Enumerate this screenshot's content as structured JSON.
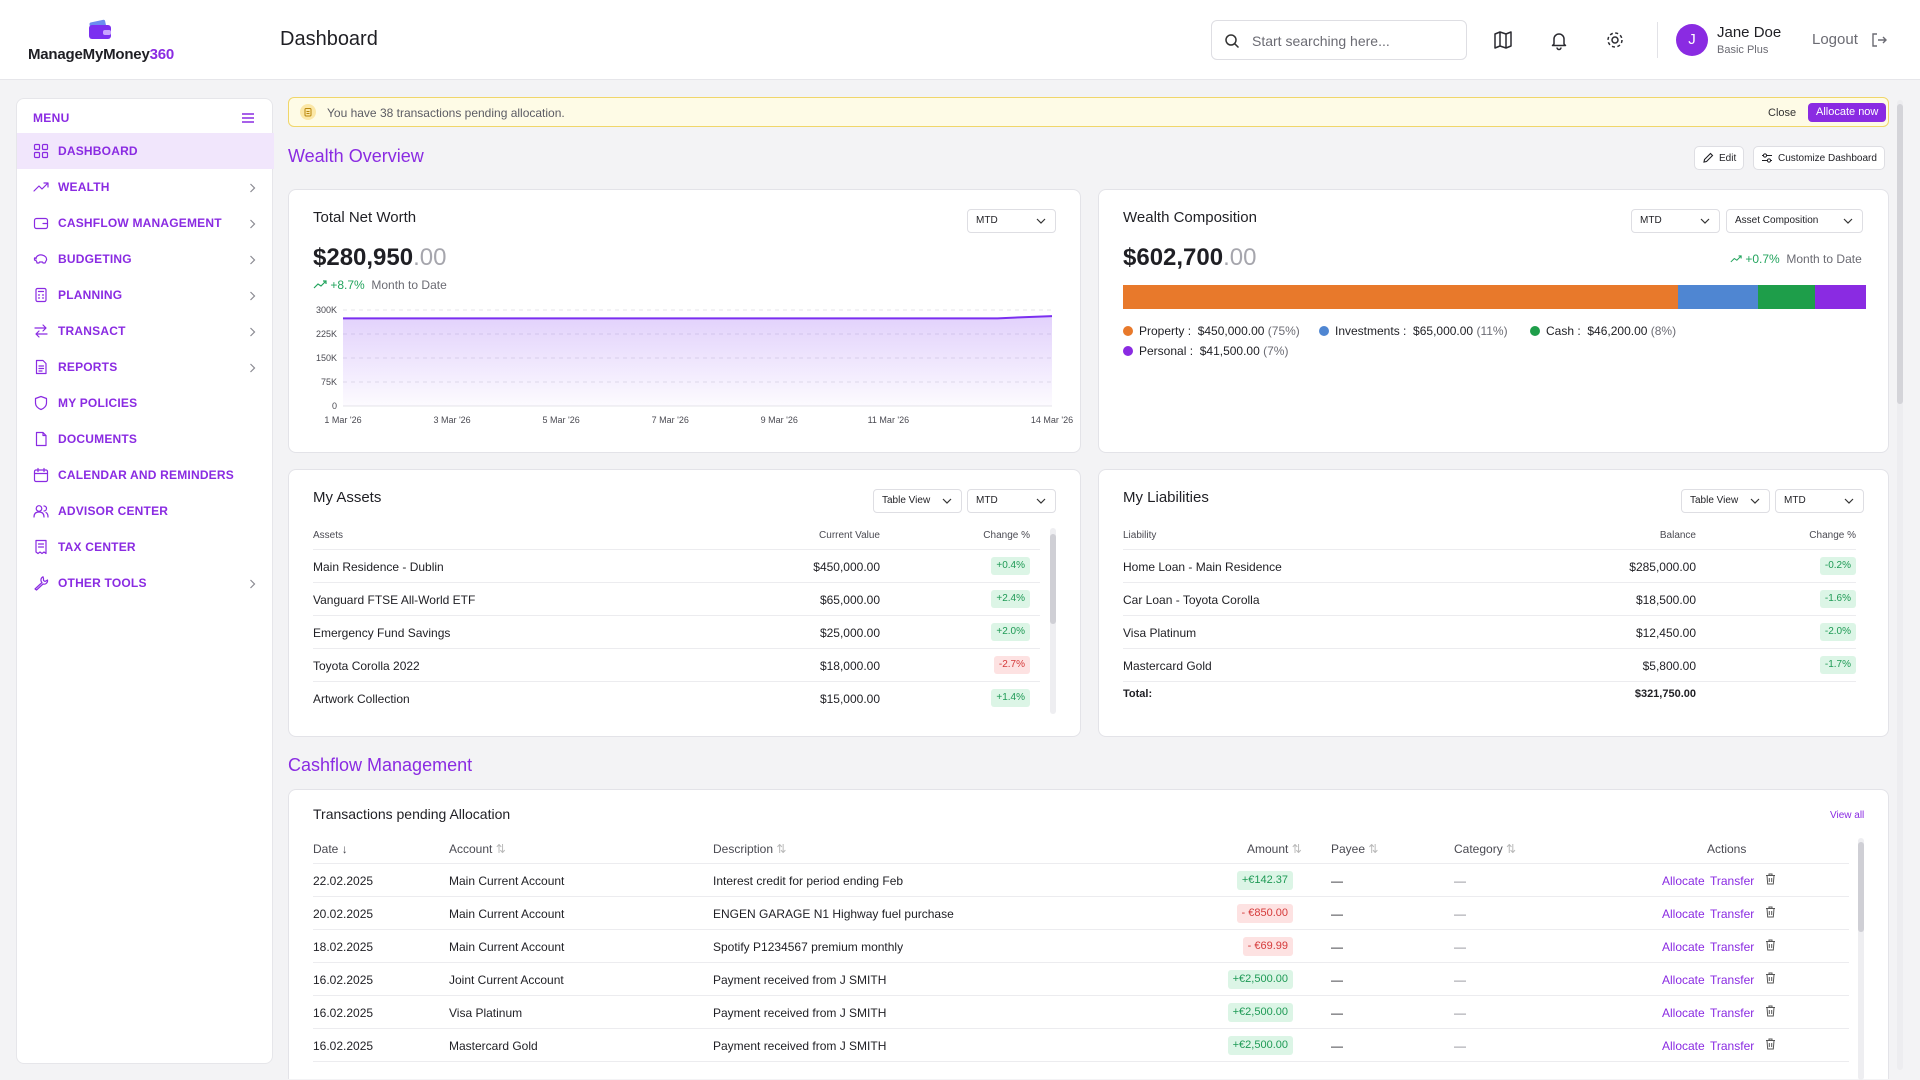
{
  "header": {
    "logo_text_main": "ManageMyMoney",
    "logo_text_accent": "360",
    "page_title": "Dashboard",
    "search_placeholder": "Start searching here...",
    "icons": [
      "map-icon",
      "bell-icon",
      "gear-icon"
    ],
    "user": {
      "initial": "J",
      "name": "Jane Doe",
      "plan": "Basic Plus"
    },
    "logout_label": "Logout"
  },
  "sidebar": {
    "menu_label": "MENU",
    "items": [
      {
        "label": "DASHBOARD",
        "icon": "dashboard-icon",
        "active": true,
        "chevron": false
      },
      {
        "label": "WEALTH",
        "icon": "trending-up-icon",
        "active": false,
        "chevron": true
      },
      {
        "label": "CASHFLOW MANAGEMENT",
        "icon": "wallet-icon",
        "active": false,
        "chevron": true
      },
      {
        "label": "BUDGETING",
        "icon": "piggy-bank-icon",
        "active": false,
        "chevron": true
      },
      {
        "label": "PLANNING",
        "icon": "calculator-icon",
        "active": false,
        "chevron": true
      },
      {
        "label": "TRANSACT",
        "icon": "arrows-swap-icon",
        "active": false,
        "chevron": true
      },
      {
        "label": "REPORTS",
        "icon": "report-icon",
        "active": false,
        "chevron": true
      },
      {
        "label": "MY POLICIES",
        "icon": "shield-icon",
        "active": false,
        "chevron": false
      },
      {
        "label": "DOCUMENTS",
        "icon": "document-icon",
        "active": false,
        "chevron": false
      },
      {
        "label": "CALENDAR AND REMINDERS",
        "icon": "calendar-icon",
        "active": false,
        "chevron": false
      },
      {
        "label": "ADVISOR CENTER",
        "icon": "users-icon",
        "active": false,
        "chevron": false
      },
      {
        "label": "TAX CENTER",
        "icon": "receipt-icon",
        "active": false,
        "chevron": false
      },
      {
        "label": "OTHER TOOLS",
        "icon": "wrench-icon",
        "active": false,
        "chevron": true
      }
    ]
  },
  "banner": {
    "text": "You have 38 transactions pending allocation.",
    "close_label": "Close",
    "action_label": "Allocate now"
  },
  "wealth_overview": {
    "title": "Wealth Overview",
    "edit_label": "Edit",
    "customize_label": "Customize Dashboard"
  },
  "net_worth": {
    "title": "Total Net Worth",
    "period": "MTD",
    "amount_main": "$280,950",
    "amount_cents": ".00",
    "change": "+8.7%",
    "change_label": "Month to Date"
  },
  "chart_data": {
    "type": "area",
    "x": [
      "1 Mar '26",
      "2 Mar '26",
      "3 Mar '26",
      "4 Mar '26",
      "5 Mar '26",
      "6 Mar '26",
      "7 Mar '26",
      "8 Mar '26",
      "9 Mar '26",
      "10 Mar '26",
      "11 Mar '26",
      "12 Mar '26",
      "13 Mar '26",
      "14 Mar '26"
    ],
    "x_tick_labels": [
      "1 Mar '26",
      "3 Mar '26",
      "5 Mar '26",
      "7 Mar '26",
      "9 Mar '26",
      "11 Mar '26",
      "14 Mar '26"
    ],
    "series": [
      {
        "values": [
          274000,
          274000,
          274000,
          274000,
          274000,
          274000,
          274000,
          274000,
          274000,
          274000,
          274000,
          274000,
          274000,
          281000
        ]
      }
    ],
    "y_ticks": [
      "0",
      "75K",
      "150K",
      "225K",
      "300K"
    ],
    "ylim": [
      0,
      300000
    ],
    "grid": true,
    "color": "#7b2ff0"
  },
  "composition": {
    "title": "Wealth Composition",
    "period": "MTD",
    "view": "Asset Composition",
    "amount_main": "$602,700",
    "amount_cents": ".00",
    "change": "+0.7%",
    "change_label": "Month to Date",
    "segments": [
      {
        "name": "Property",
        "value": "$450,000.00",
        "pct": "(75%)",
        "fraction": 0.747,
        "color": "#e8792b"
      },
      {
        "name": "Investments",
        "value": "$65,000.00",
        "pct": "(11%)",
        "fraction": 0.108,
        "color": "#4f86d2"
      },
      {
        "name": "Cash",
        "value": "$46,200.00",
        "pct": "(8%)",
        "fraction": 0.077,
        "color": "#1e9e4a"
      },
      {
        "name": "Personal",
        "value": "$41,500.00",
        "pct": "(7%)",
        "fraction": 0.068,
        "color": "#8a2be2"
      }
    ]
  },
  "assets": {
    "title": "My Assets",
    "view": "Table View",
    "period": "MTD",
    "columns": [
      "Assets",
      "Current Value",
      "Change %"
    ],
    "rows": [
      {
        "name": "Main Residence - Dublin",
        "value": "$450,000.00",
        "change": "+0.4%",
        "trend": "pos"
      },
      {
        "name": "Vanguard FTSE All-World ETF",
        "value": "$65,000.00",
        "change": "+2.4%",
        "trend": "pos"
      },
      {
        "name": "Emergency Fund Savings",
        "value": "$25,000.00",
        "change": "+2.0%",
        "trend": "pos"
      },
      {
        "name": "Toyota Corolla 2022",
        "value": "$18,000.00",
        "change": "-2.7%",
        "trend": "neg"
      },
      {
        "name": "Artwork Collection",
        "value": "$15,000.00",
        "change": "+1.4%",
        "trend": "pos"
      }
    ]
  },
  "liabilities": {
    "title": "My Liabilities",
    "view": "Table View",
    "period": "MTD",
    "columns": [
      "Liability",
      "Balance",
      "Change %"
    ],
    "rows": [
      {
        "name": "Home Loan - Main Residence",
        "value": "$285,000.00",
        "change": "-0.2%"
      },
      {
        "name": "Car Loan - Toyota Corolla",
        "value": "$18,500.00",
        "change": "-1.6%"
      },
      {
        "name": "Visa Platinum",
        "value": "$12,450.00",
        "change": "-2.0%"
      },
      {
        "name": "Mastercard Gold",
        "value": "$5,800.00",
        "change": "-1.7%"
      }
    ],
    "total_label": "Total:",
    "total_value": "$321,750.00"
  },
  "cashflow": {
    "title": "Cashflow Management",
    "card_title": "Transactions pending Allocation",
    "view_all": "View all",
    "columns": {
      "date": "Date",
      "account": "Account",
      "description": "Description",
      "amount": "Amount",
      "payee": "Payee",
      "category": "Category",
      "actions": "Actions"
    },
    "allocate_label": "Allocate",
    "transfer_label": "Transfer",
    "rows": [
      {
        "date": "22.02.2025",
        "account": "Main Current Account",
        "description": "Interest credit for period ending Feb",
        "amount": "+€142.37",
        "trend": "pos",
        "payee": "—",
        "category": "—"
      },
      {
        "date": "20.02.2025",
        "account": "Main Current Account",
        "description": "ENGEN GARAGE N1 Highway fuel purchase",
        "amount": "- €850.00",
        "trend": "neg",
        "payee": "—",
        "category": "—"
      },
      {
        "date": "18.02.2025",
        "account": "Main Current Account",
        "description": "Spotify P1234567 premium monthly",
        "amount": "- €69.99",
        "trend": "neg",
        "payee": "—",
        "category": "—"
      },
      {
        "date": "16.02.2025",
        "account": "Joint Current Account",
        "description": "Payment received from J SMITH",
        "amount": "+€2,500.00",
        "trend": "pos",
        "payee": "—",
        "category": "—"
      },
      {
        "date": "16.02.2025",
        "account": "Visa Platinum",
        "description": "Payment received from J SMITH",
        "amount": "+€2,500.00",
        "trend": "pos",
        "payee": "—",
        "category": "—"
      },
      {
        "date": "16.02.2025",
        "account": "Mastercard Gold",
        "description": "Payment received from J SMITH",
        "amount": "+€2,500.00",
        "trend": "pos",
        "payee": "—",
        "category": "—"
      }
    ]
  }
}
